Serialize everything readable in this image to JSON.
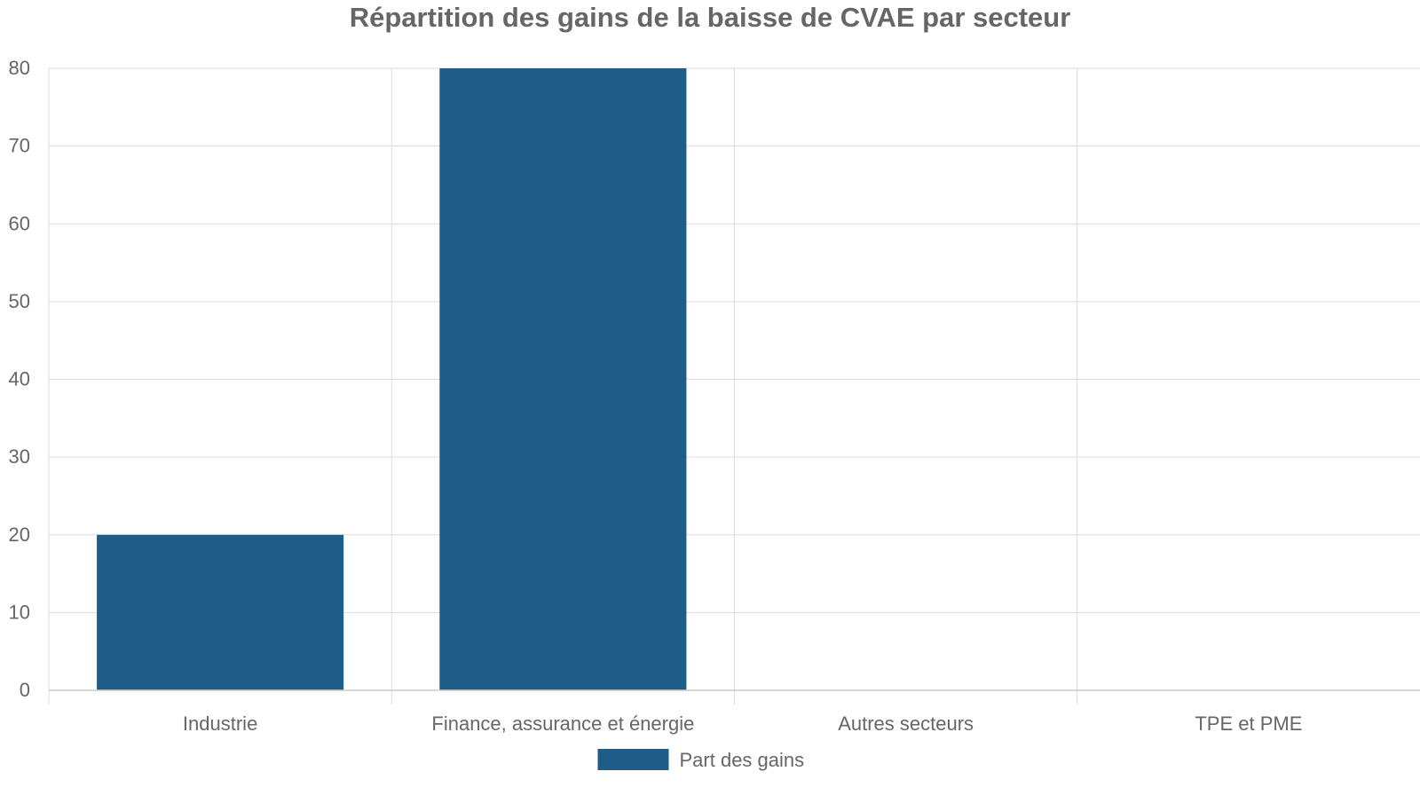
{
  "chart_data": {
    "type": "bar",
    "title": "Répartition des gains de la baisse de CVAE par secteur",
    "categories": [
      "Industrie",
      "Finance, assurance et énergie",
      "Autres secteurs",
      "TPE et PME"
    ],
    "series": [
      {
        "name": "Part des gains",
        "values": [
          20,
          80,
          0,
          0
        ],
        "color": "#1f5c87"
      }
    ],
    "xlabel": "",
    "ylabel": "",
    "ylim": [
      0,
      80
    ],
    "yticks": [
      0,
      10,
      20,
      30,
      40,
      50,
      60,
      70,
      80
    ],
    "grid": true,
    "legend_position": "bottom-center",
    "colors": {
      "text": "#666666",
      "title": "#666666",
      "grid": "#dddddd",
      "axis": "#cccccc"
    }
  }
}
